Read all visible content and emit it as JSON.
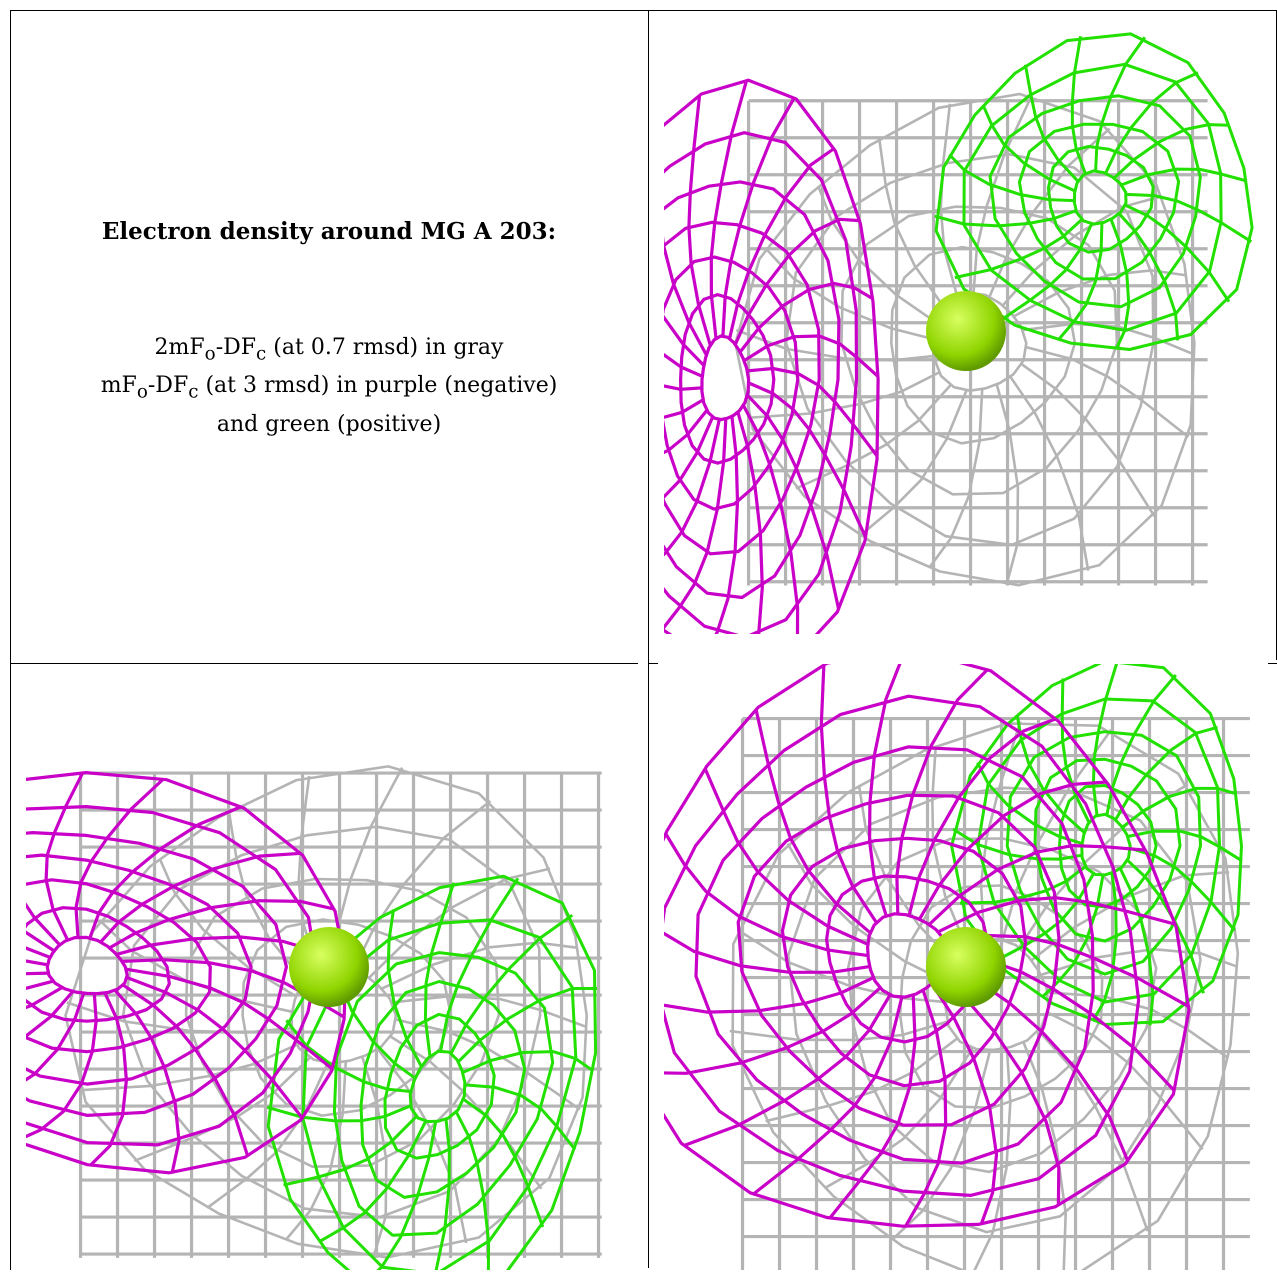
{
  "caption": {
    "title": "Electron density around MG A 203:",
    "line1": "2mF<sub>o</sub>-DF<sub>c</sub> (at 0.7 rmsd) in gray",
    "line2": "mF<sub>o</sub>-DF<sub>c</sub> (at 3 rmsd) in purple (negative)",
    "line3": "and green (positive)"
  },
  "colors": {
    "gray_map": "#b4b4b4",
    "negative_map": "#c800c8",
    "positive_map": "#22e000",
    "atom": "#8fd400"
  },
  "panels": [
    {
      "id": "top-right-view",
      "ion": [
        0.5,
        0.5
      ],
      "purple": [
        0.1,
        0.58,
        0.27,
        0.48,
        0.0
      ],
      "gray": [
        0.52,
        0.52,
        0.38,
        0.4,
        0.0
      ],
      "green": [
        0.72,
        0.28,
        0.26,
        0.26,
        -0.2
      ]
    },
    {
      "id": "bottom-left-view",
      "ion": [
        0.5,
        0.5
      ],
      "purple": [
        0.1,
        0.5,
        0.46,
        0.32,
        0.2
      ],
      "gray": [
        0.52,
        0.58,
        0.43,
        0.4,
        0.0
      ],
      "green": [
        0.68,
        0.7,
        0.26,
        0.36,
        0.3
      ]
    },
    {
      "id": "bottom-right-view",
      "ion": [
        0.5,
        0.5
      ],
      "purple": [
        0.4,
        0.48,
        0.46,
        0.48,
        -0.4
      ],
      "gray": [
        0.55,
        0.55,
        0.42,
        0.46,
        0.2
      ],
      "green": [
        0.73,
        0.3,
        0.24,
        0.3,
        0.0
      ]
    }
  ]
}
